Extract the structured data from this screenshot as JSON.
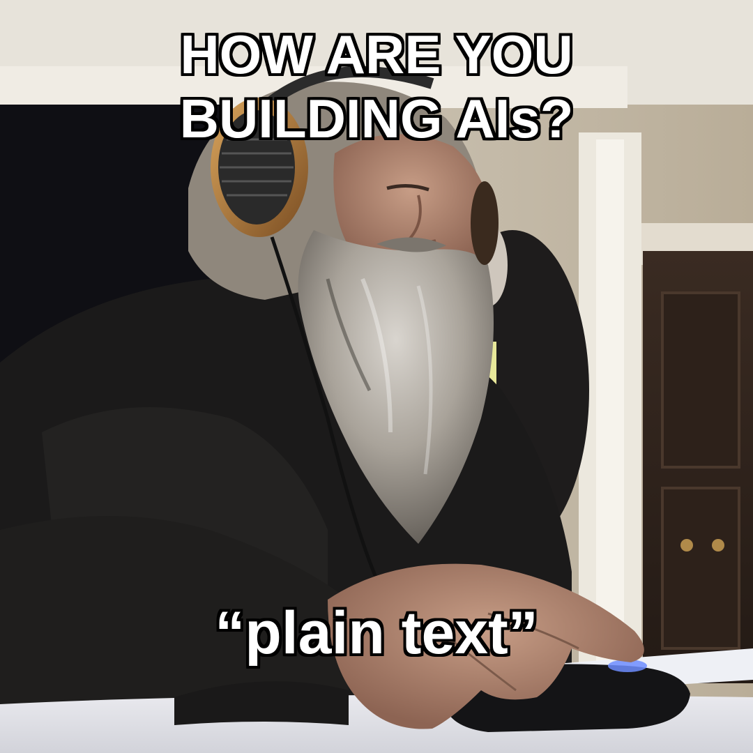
{
  "meme": {
    "top_text": [
      "HOW ARE YOU",
      "BUILDING AIs?"
    ],
    "bottom_text": "“plain text”"
  },
  "colors": {
    "caption_fill": "#ffffff",
    "caption_outline": "#000000"
  }
}
